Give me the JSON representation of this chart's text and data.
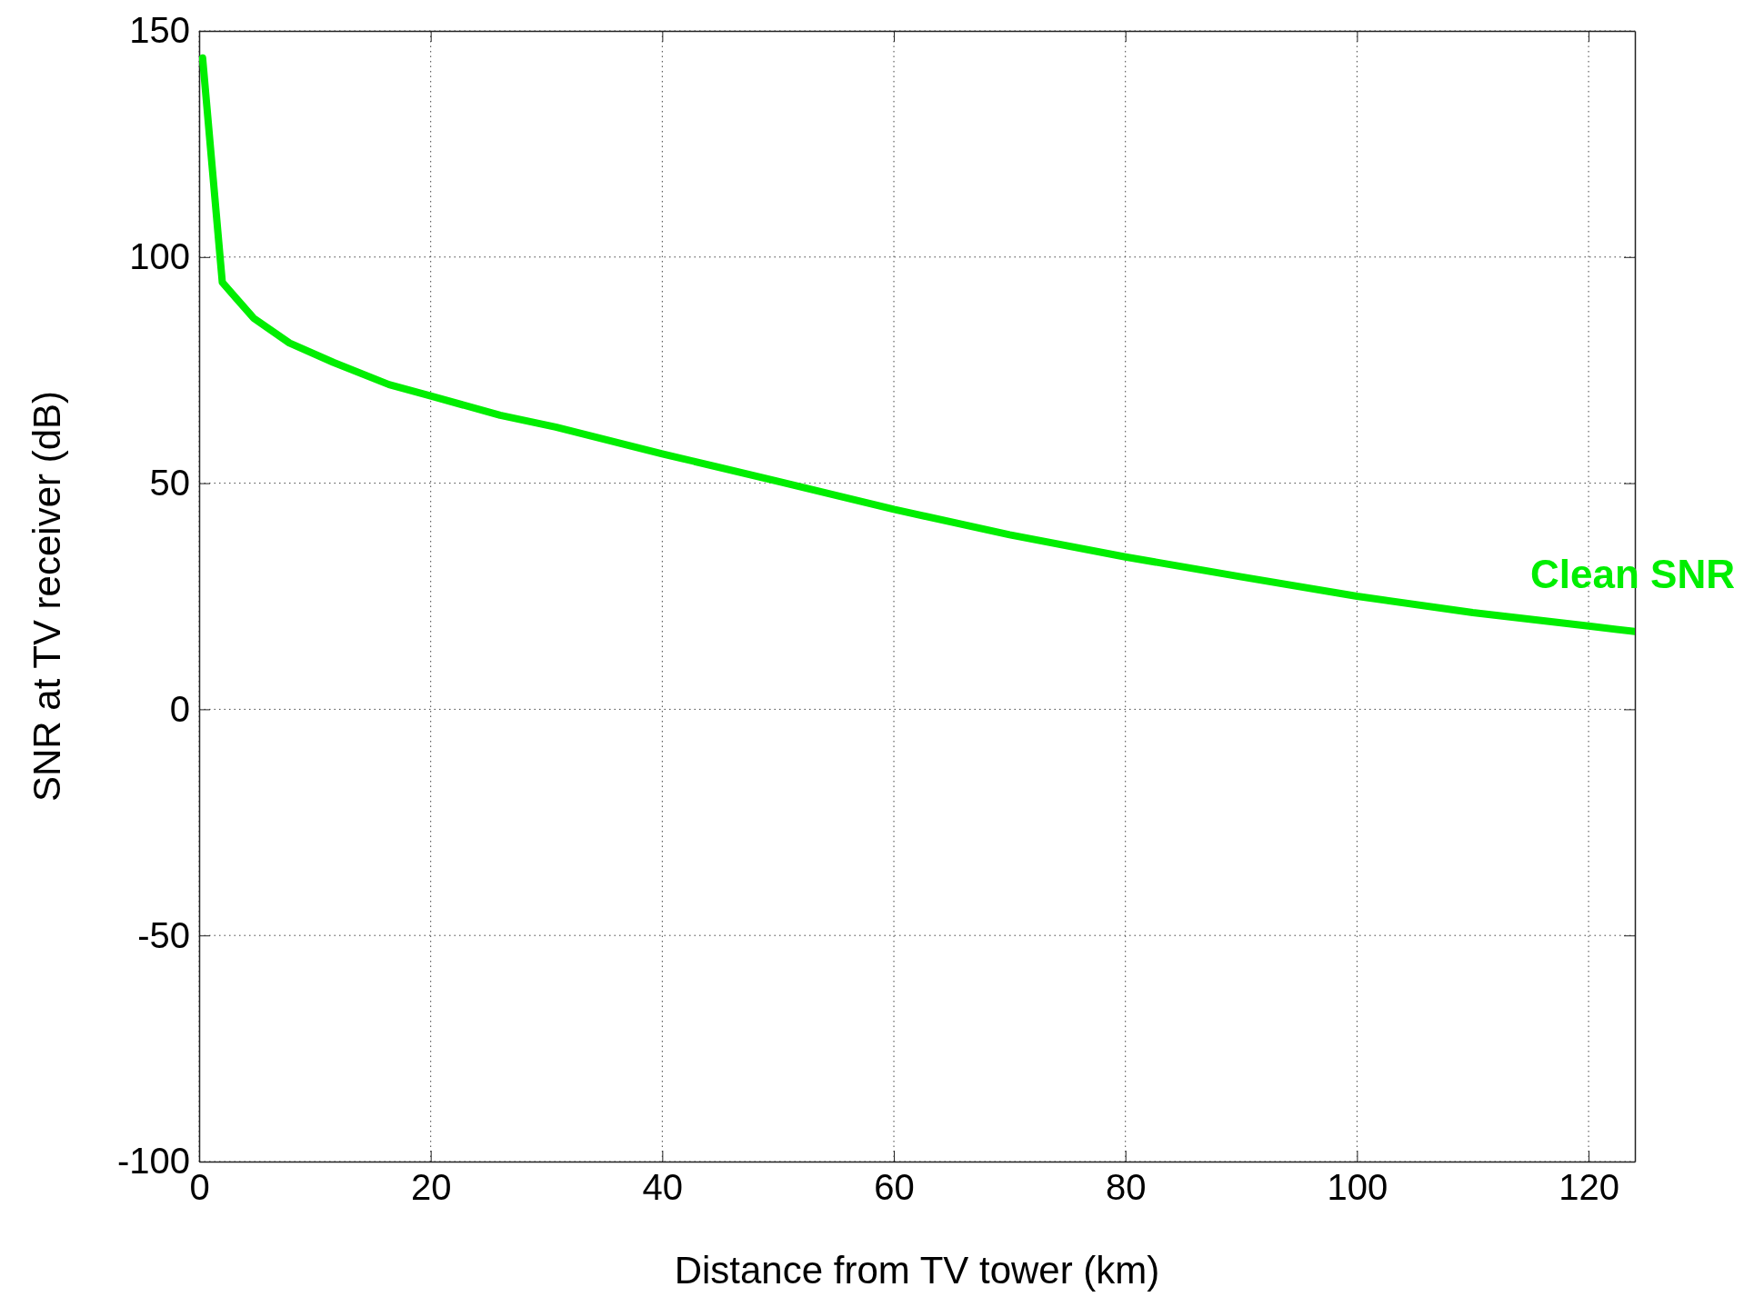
{
  "chart_data": {
    "type": "line",
    "xlabel": "Distance from TV tower (km)",
    "ylabel": "SNR at TV receiver (dB)",
    "xlim": [
      0,
      124
    ],
    "ylim": [
      -100,
      150
    ],
    "xticks": [
      0,
      20,
      40,
      60,
      80,
      100,
      120
    ],
    "yticks": [
      -100,
      -50,
      0,
      50,
      100,
      150
    ],
    "grid": true,
    "line_style": "solid",
    "marker": "none",
    "series": [
      {
        "name": "Clean SNR",
        "color": "#00ee00",
        "x": [
          0.3,
          2.0,
          4.7,
          7.8,
          11.6,
          16.4,
          20,
          26,
          30.8,
          40,
          50,
          60,
          70,
          80,
          90,
          100,
          110,
          120,
          124
        ],
        "values": [
          144,
          94.4,
          86.5,
          81,
          76.7,
          71.8,
          69.3,
          65,
          62.4,
          56.5,
          50.4,
          44.2,
          38.6,
          33.7,
          29.3,
          25,
          21.4,
          18.4,
          17.2
        ]
      }
    ]
  }
}
